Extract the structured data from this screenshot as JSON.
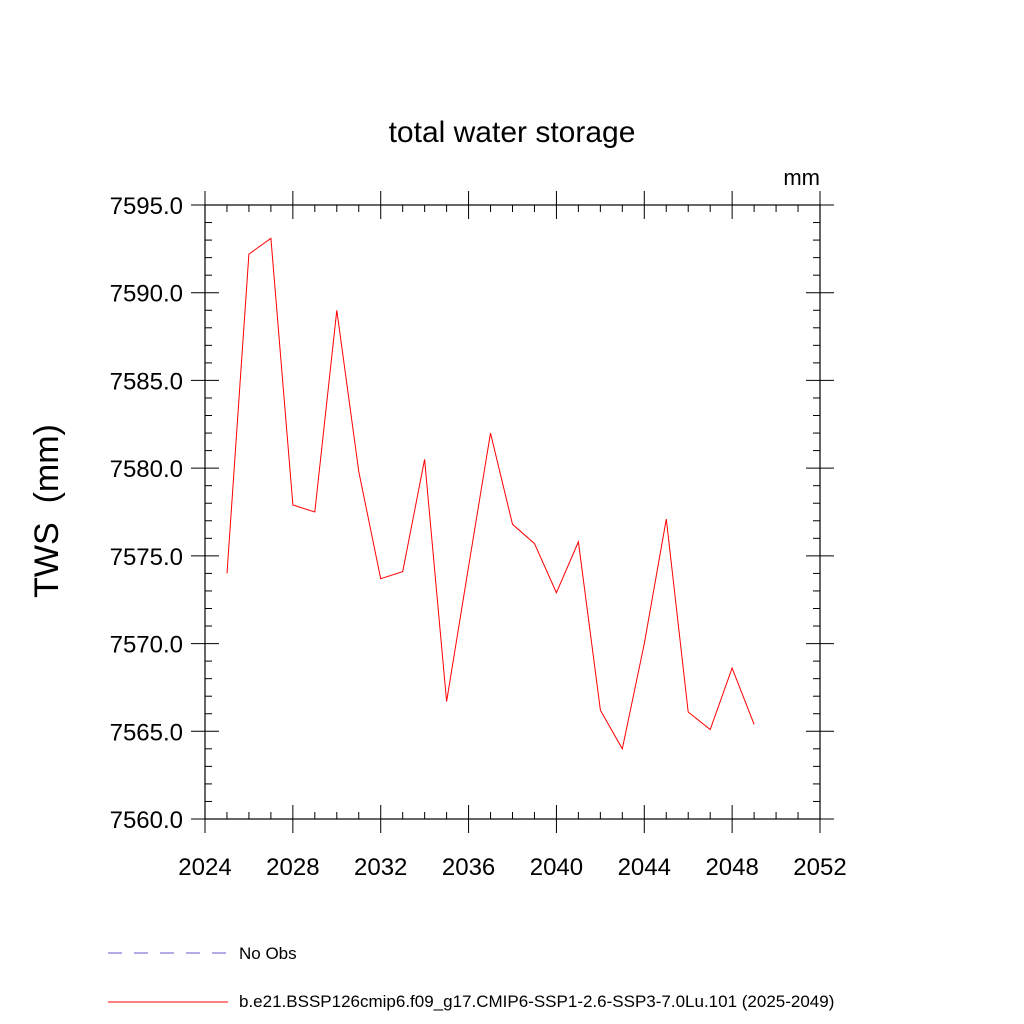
{
  "chart_data": {
    "type": "line",
    "title": "total water storage",
    "units": "mm",
    "ylabel": "TWS  (mm)",
    "xlabel": "",
    "xlim": [
      2024,
      2052
    ],
    "ylim": [
      7560.0,
      7595.0
    ],
    "xticks": [
      "2024",
      "2028",
      "2032",
      "2036",
      "2040",
      "2044",
      "2048",
      "2052"
    ],
    "yticks": [
      "7560.0",
      "7565.0",
      "7570.0",
      "7575.0",
      "7580.0",
      "7585.0",
      "7590.0",
      "7595.0"
    ],
    "grid": false,
    "legend_position": "bottom",
    "legend": [
      {
        "label": "No Obs",
        "color": "#6a5acd",
        "style": "dashed"
      },
      {
        "label": "b.e21.BSSP126cmip6.f09_g17.CMIP6-SSP1-2.6-SSP3-7.0Lu.101 (2025-2049)",
        "color": "#ff0000",
        "style": "solid"
      }
    ],
    "series": [
      {
        "name": "b.e21.BSSP126cmip6.f09_g17.CMIP6-SSP1-2.6-SSP3-7.0Lu.101 (2025-2049)",
        "color": "#ff0000",
        "x": [
          2025,
          2026,
          2027,
          2028,
          2029,
          2030,
          2031,
          2032,
          2033,
          2034,
          2035,
          2036,
          2037,
          2038,
          2039,
          2040,
          2041,
          2042,
          2043,
          2044,
          2045,
          2046,
          2047,
          2048,
          2049
        ],
        "y": [
          7574.0,
          7592.2,
          7593.1,
          7577.9,
          7577.5,
          7589.0,
          7579.8,
          7573.7,
          7574.1,
          7580.5,
          7566.7,
          7574.4,
          7582.0,
          7576.8,
          7575.7,
          7572.9,
          7575.8,
          7566.2,
          7564.0,
          7570.0,
          7577.1,
          7566.1,
          7565.1,
          7568.6,
          7565.4
        ]
      }
    ]
  }
}
